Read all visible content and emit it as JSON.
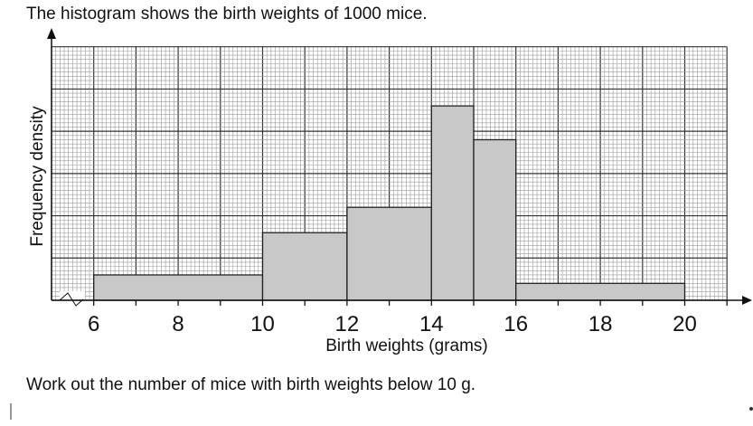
{
  "question": {
    "intro": "The histogram shows the birth weights of 1000 mice.",
    "task": "Work out the number of mice with birth weights below 10 g."
  },
  "chart_data": {
    "type": "histogram",
    "title": "",
    "xlabel": "Birth weights (grams)",
    "ylabel": "Frequency density",
    "xlim": [
      5,
      21
    ],
    "ylim": [
      0,
      300
    ],
    "x_ticks": [
      6,
      8,
      10,
      12,
      14,
      16,
      18,
      20
    ],
    "x_tick_labels": [
      "6",
      "8",
      "10",
      "12",
      "14",
      "16",
      "18",
      "20"
    ],
    "y_tick_labels": [],
    "grid": true,
    "broken_x_axis": true,
    "bars": [
      {
        "from": 6,
        "to": 10,
        "value": 30
      },
      {
        "from": 10,
        "to": 12,
        "value": 80
      },
      {
        "from": 12,
        "to": 14,
        "value": 110
      },
      {
        "from": 14,
        "to": 15,
        "value": 230
      },
      {
        "from": 15,
        "to": 16,
        "value": 190
      },
      {
        "from": 16,
        "to": 20,
        "value": 20
      }
    ],
    "colors": {
      "bar": "#c8c8c8",
      "minor_grid": "#9a9a9a",
      "major_grid": "#333333"
    }
  }
}
